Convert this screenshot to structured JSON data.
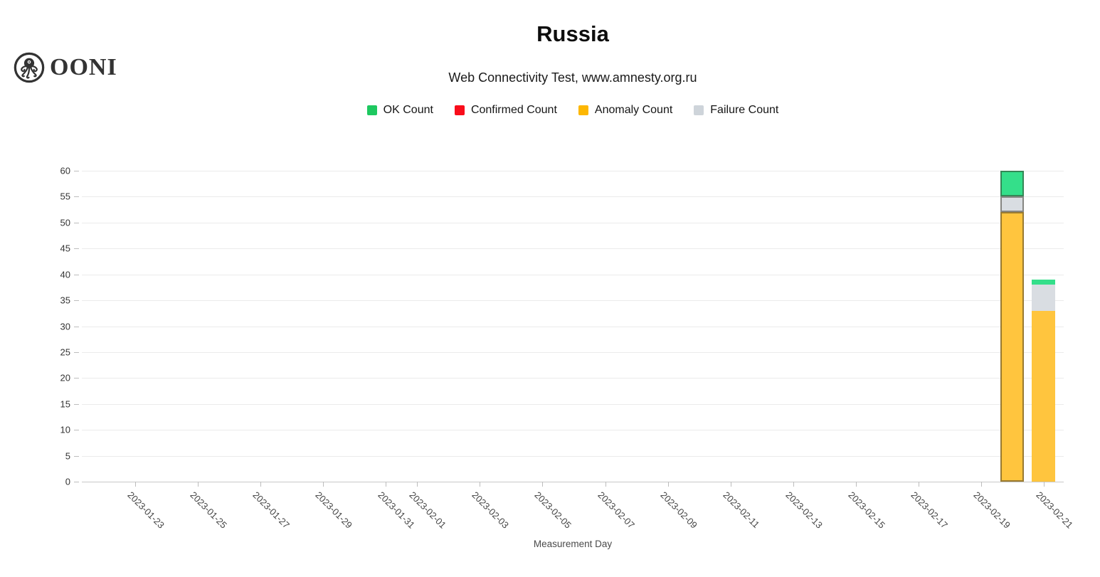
{
  "logo": {
    "wordmark": "OONI"
  },
  "header": {
    "title": "Russia",
    "subtitle": "Web Connectivity Test, www.amnesty.org.ru"
  },
  "legend": {
    "items": [
      {
        "key": "ok",
        "label": "OK Count",
        "color": "#1ec860"
      },
      {
        "key": "confirmed",
        "label": "Confirmed Count",
        "color": "#f90d1b"
      },
      {
        "key": "anomaly",
        "label": "Anomaly Count",
        "color": "#fdb702"
      },
      {
        "key": "failure",
        "label": "Failure Count",
        "color": "#ced4da"
      }
    ]
  },
  "chart_data": {
    "type": "bar",
    "stacked": true,
    "title": "Russia",
    "subtitle": "Web Connectivity Test, www.amnesty.org.ru",
    "xlabel": "Measurement Day",
    "ylabel": "",
    "ylim": [
      0,
      60
    ],
    "yticks": [
      0,
      5,
      10,
      15,
      20,
      25,
      30,
      35,
      40,
      45,
      50,
      55,
      60
    ],
    "xtick_labels": [
      "2023-01-23",
      "2023-01-25",
      "2023-01-27",
      "2023-01-29",
      "2023-01-31",
      "2023-02-01",
      "2023-02-03",
      "2023-02-05",
      "2023-02-07",
      "2023-02-09",
      "2023-02-11",
      "2023-02-13",
      "2023-02-15",
      "2023-02-17",
      "2023-02-19",
      "2023-02-21"
    ],
    "x_start_date": "2023-01-23",
    "grid": true,
    "legend_position": "top",
    "series_order_bottom_to_top": [
      "anomaly",
      "failure",
      "ok",
      "confirmed"
    ],
    "bar_colors": {
      "ok": "#34df8a",
      "confirmed": "#fa0d1b",
      "anomaly": "#ffc53e",
      "failure": "#d9dde2"
    },
    "bars": [
      {
        "date": "2023-02-20",
        "ok": 5,
        "confirmed": 0,
        "anomaly": 52,
        "failure": 3,
        "total": 60,
        "highlighted": true
      },
      {
        "date": "2023-02-21",
        "ok": 1,
        "confirmed": 0,
        "anomaly": 33,
        "failure": 5,
        "total": 39,
        "highlighted": false
      }
    ]
  }
}
